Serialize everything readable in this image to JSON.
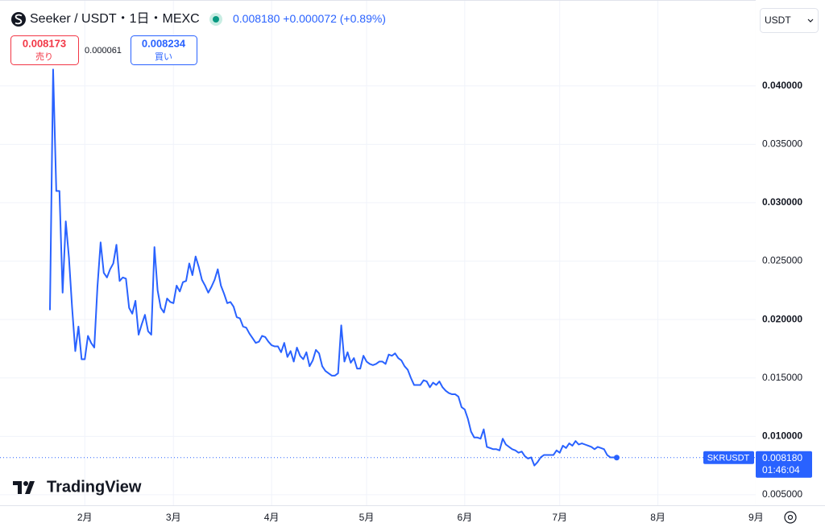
{
  "header": {
    "symbol": "Seeker / USDT・1日・MEXC",
    "change": "+0.000072",
    "change_pct": "(+0.89%)"
  },
  "trade": {
    "sell_price": "0.008173",
    "sell_label": "売り",
    "spread": "0.000061",
    "buy_price": "0.008234",
    "buy_label": "買い"
  },
  "currency": "USDT",
  "watermark": "TradingView",
  "chart_data": {
    "type": "line",
    "categories": [
      null,
      null,
      null,
      null,
      null,
      null,
      null,
      null,
      null,
      null,
      null,
      "2月",
      null,
      null,
      null,
      null,
      null,
      null,
      null,
      null,
      null,
      null,
      null,
      null,
      null,
      null,
      null,
      null,
      null,
      null,
      null,
      null,
      null,
      null,
      null,
      null,
      null,
      null,
      null,
      "3月",
      null,
      null,
      null,
      null,
      null,
      null,
      null,
      null,
      null,
      null,
      null,
      null,
      null,
      null,
      null,
      null,
      null,
      null,
      null,
      null,
      null,
      null,
      null,
      null,
      null,
      null,
      null,
      null,
      null,
      null,
      "4月",
      null,
      null,
      null,
      null,
      null,
      null,
      null,
      null,
      null,
      null,
      null,
      null,
      null,
      null,
      null,
      null,
      null,
      null,
      null,
      null,
      null,
      null,
      null,
      null,
      null,
      null,
      null,
      null,
      null,
      "5月",
      null,
      null,
      null,
      null,
      null,
      null,
      null,
      null,
      null,
      null,
      null,
      null,
      null,
      null,
      null,
      null,
      null,
      null,
      null,
      null,
      null,
      null,
      null,
      null,
      null,
      null,
      null,
      null,
      null,
      null,
      "6月",
      null,
      null,
      null,
      null,
      null,
      null,
      null,
      null,
      null,
      null,
      null,
      null,
      null,
      null,
      null,
      null,
      null,
      null,
      null,
      null,
      null,
      null,
      null,
      null,
      null,
      null,
      null,
      null,
      null,
      "7月",
      null,
      null,
      null,
      null,
      null,
      null,
      null,
      null,
      null,
      null,
      null,
      null,
      null,
      null,
      null,
      null,
      null,
      null,
      null,
      null,
      null,
      null,
      null,
      null,
      null,
      null,
      null,
      null,
      null,
      null,
      "8月",
      null,
      null,
      null,
      null,
      null,
      null,
      null,
      null,
      null,
      null,
      null,
      null,
      null,
      null,
      null,
      null,
      null,
      null,
      null,
      null,
      null,
      null,
      null,
      null,
      null,
      null,
      null,
      null,
      null,
      null,
      "9月"
    ],
    "series": [
      {
        "name": "SKRUSDT",
        "color": "#2962ff",
        "values": [
          0.0208,
          0.0414,
          0.031,
          0.031,
          0.0223,
          0.0284,
          0.0253,
          0.021,
          0.0173,
          0.0194,
          0.0166,
          0.0166,
          0.0186,
          0.018,
          0.0176,
          0.0228,
          0.0266,
          0.024,
          0.0236,
          0.0243,
          0.0248,
          0.0264,
          0.0233,
          0.0236,
          0.0235,
          0.021,
          0.0205,
          0.0216,
          0.0187,
          0.0196,
          0.0204,
          0.019,
          0.0187,
          0.0262,
          0.0225,
          0.021,
          0.0206,
          0.0218,
          0.0215,
          0.0214,
          0.0229,
          0.0224,
          0.0232,
          0.0233,
          0.0248,
          0.0238,
          0.0254,
          0.0245,
          0.0234,
          0.0229,
          0.0223,
          0.0228,
          0.0234,
          0.0243,
          0.0229,
          0.0222,
          0.0214,
          0.0215,
          0.0211,
          0.0202,
          0.0201,
          0.0194,
          0.0193,
          0.0188,
          0.0184,
          0.018,
          0.0181,
          0.0186,
          0.0185,
          0.0181,
          0.0178,
          0.0177,
          0.0177,
          0.0172,
          0.018,
          0.0168,
          0.0173,
          0.0164,
          0.0176,
          0.0169,
          0.0166,
          0.0172,
          0.016,
          0.0165,
          0.0174,
          0.0171,
          0.016,
          0.0156,
          0.0154,
          0.0152,
          0.0152,
          0.0154,
          0.0195,
          0.0164,
          0.0172,
          0.0163,
          0.0167,
          0.0158,
          0.0158,
          0.0169,
          0.0164,
          0.0162,
          0.0161,
          0.0162,
          0.0164,
          0.0164,
          0.0162,
          0.017,
          0.0169,
          0.0171,
          0.0167,
          0.0165,
          0.016,
          0.0157,
          0.015,
          0.0144,
          0.0144,
          0.0144,
          0.0148,
          0.0147,
          0.0142,
          0.0146,
          0.0144,
          0.0147,
          0.0142,
          0.0139,
          0.0137,
          0.0136,
          0.0136,
          0.0134,
          0.0125,
          0.0123,
          0.0115,
          0.0104,
          0.0099,
          0.0099,
          0.0098,
          0.0106,
          0.0091,
          0.009,
          0.0089,
          0.0089,
          0.0088,
          0.0098,
          0.0093,
          0.0091,
          0.0089,
          0.0088,
          0.0086,
          0.0087,
          0.0083,
          0.0081,
          0.0082,
          0.0075,
          0.0078,
          0.0082,
          0.0084,
          0.0084,
          0.0084,
          0.0084,
          0.0088,
          0.0086,
          0.0092,
          0.009,
          0.0094,
          0.0092,
          0.0096,
          0.0093,
          0.0094,
          0.0093,
          0.0092,
          0.0091,
          0.0089,
          0.0091,
          0.009,
          0.0089,
          0.0084,
          0.0082,
          0.0082,
          0.00818,
          null,
          null,
          null,
          null,
          null,
          null,
          null,
          null,
          null,
          null,
          null,
          null,
          null,
          null,
          null,
          null,
          null,
          null,
          null,
          null,
          null,
          null,
          null,
          null,
          null,
          null,
          null,
          null,
          null,
          null,
          null,
          null,
          null,
          null,
          null,
          null,
          null,
          null,
          null,
          null,
          null,
          null,
          null,
          null
        ]
      }
    ],
    "ylim": [
      0.0041,
      0.0468
    ],
    "yticks": [
      {
        "value": 0.005,
        "label": "0.005000"
      },
      {
        "value": 0.01,
        "label": "0.010000"
      },
      {
        "value": 0.015,
        "label": "0.015000"
      },
      {
        "value": 0.02,
        "label": "0.020000"
      },
      {
        "value": 0.025,
        "label": "0.025000"
      },
      {
        "value": 0.03,
        "label": "0.030000"
      },
      {
        "value": 0.035,
        "label": "0.035000"
      },
      {
        "value": 0.04,
        "label": "0.040000"
      }
    ],
    "grid": true,
    "last_price": {
      "value": 0.00818,
      "label": "0.008180"
    },
    "countdown": "01:46:04"
  }
}
